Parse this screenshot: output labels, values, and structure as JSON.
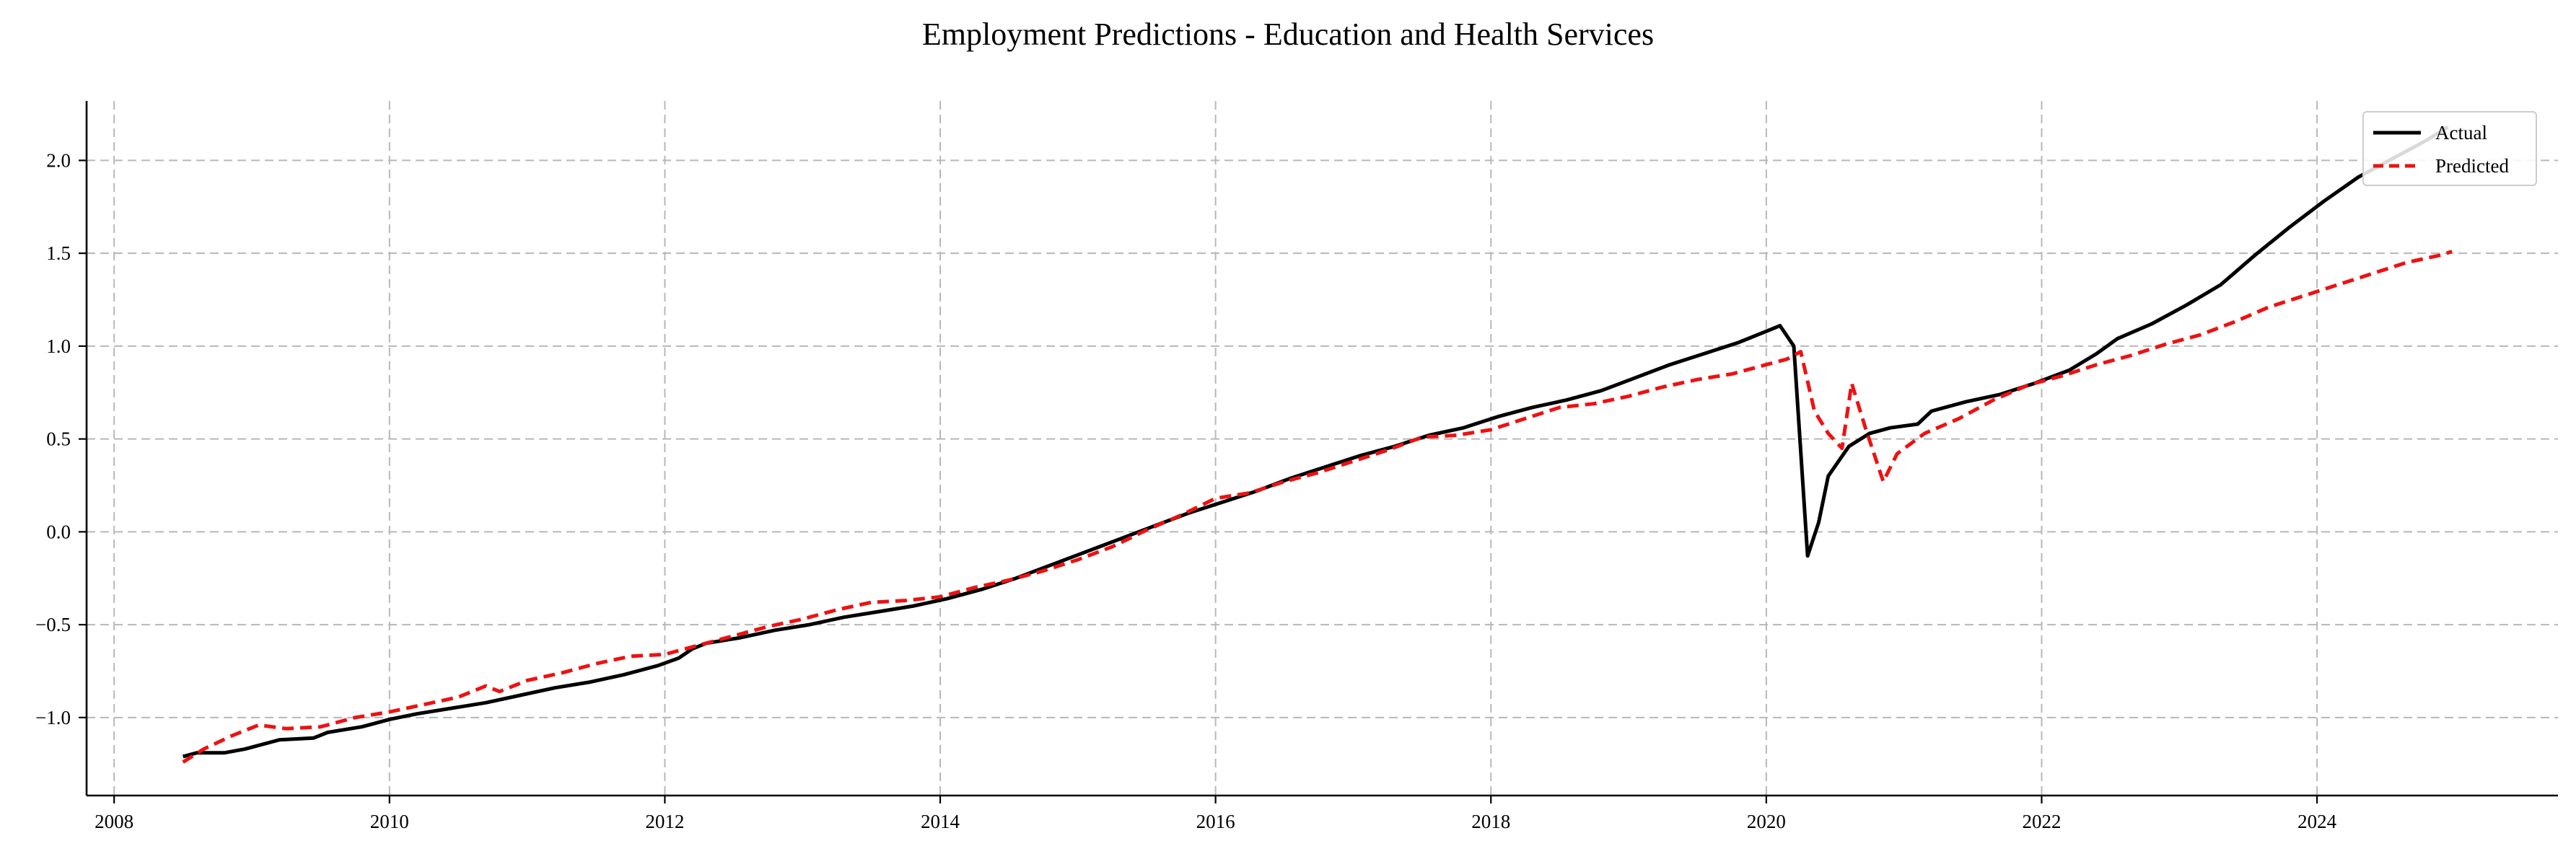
{
  "chart_data": {
    "type": "line",
    "title": "Employment Predictions - Education and Health Services",
    "xlabel": "",
    "ylabel": "",
    "xlim": [
      2007.8,
      2025.75
    ],
    "ylim": [
      -1.42,
      2.32
    ],
    "x_ticks": [
      2008,
      2010,
      2012,
      2014,
      2016,
      2018,
      2020,
      2022,
      2024
    ],
    "x_tick_labels": [
      "2008",
      "2010",
      "2012",
      "2014",
      "2016",
      "2018",
      "2020",
      "2022",
      "2024"
    ],
    "y_ticks": [
      -1.0,
      -0.5,
      0.0,
      0.5,
      1.0,
      1.5,
      2.0
    ],
    "y_tick_labels": [
      "−1.0",
      "−0.5",
      "0.0",
      "0.5",
      "1.0",
      "1.5",
      "2.0"
    ],
    "grid": true,
    "legend_position": "top-right",
    "series": [
      {
        "name": "Actual",
        "color": "#000000",
        "style": "solid",
        "points": [
          [
            2008.5,
            -1.21
          ],
          [
            2008.6,
            -1.19
          ],
          [
            2008.8,
            -1.19
          ],
          [
            2008.95,
            -1.17
          ],
          [
            2009.2,
            -1.12
          ],
          [
            2009.45,
            -1.11
          ],
          [
            2009.55,
            -1.08
          ],
          [
            2009.8,
            -1.05
          ],
          [
            2010.0,
            -1.01
          ],
          [
            2010.2,
            -0.98
          ],
          [
            2010.45,
            -0.95
          ],
          [
            2010.7,
            -0.92
          ],
          [
            2010.95,
            -0.88
          ],
          [
            2011.2,
            -0.84
          ],
          [
            2011.45,
            -0.81
          ],
          [
            2011.7,
            -0.77
          ],
          [
            2011.95,
            -0.72
          ],
          [
            2012.1,
            -0.68
          ],
          [
            2012.2,
            -0.63
          ],
          [
            2012.3,
            -0.6
          ],
          [
            2012.55,
            -0.57
          ],
          [
            2012.8,
            -0.53
          ],
          [
            2013.05,
            -0.5
          ],
          [
            2013.3,
            -0.46
          ],
          [
            2013.55,
            -0.43
          ],
          [
            2013.8,
            -0.4
          ],
          [
            2014.05,
            -0.36
          ],
          [
            2014.3,
            -0.31
          ],
          [
            2014.55,
            -0.25
          ],
          [
            2014.8,
            -0.18
          ],
          [
            2015.05,
            -0.11
          ],
          [
            2015.3,
            -0.04
          ],
          [
            2015.55,
            0.03
          ],
          [
            2015.8,
            0.1
          ],
          [
            2016.05,
            0.16
          ],
          [
            2016.3,
            0.22
          ],
          [
            2016.55,
            0.29
          ],
          [
            2016.8,
            0.35
          ],
          [
            2017.05,
            0.41
          ],
          [
            2017.3,
            0.46
          ],
          [
            2017.55,
            0.52
          ],
          [
            2017.8,
            0.56
          ],
          [
            2018.05,
            0.62
          ],
          [
            2018.3,
            0.67
          ],
          [
            2018.55,
            0.71
          ],
          [
            2018.8,
            0.76
          ],
          [
            2019.05,
            0.83
          ],
          [
            2019.3,
            0.9
          ],
          [
            2019.55,
            0.96
          ],
          [
            2019.8,
            1.02
          ],
          [
            2020.0,
            1.08
          ],
          [
            2020.1,
            1.11
          ],
          [
            2020.2,
            1.0
          ],
          [
            2020.3,
            -0.13
          ],
          [
            2020.38,
            0.05
          ],
          [
            2020.45,
            0.3
          ],
          [
            2020.6,
            0.46
          ],
          [
            2020.75,
            0.53
          ],
          [
            2020.9,
            0.56
          ],
          [
            2021.1,
            0.58
          ],
          [
            2021.2,
            0.65
          ],
          [
            2021.45,
            0.7
          ],
          [
            2021.7,
            0.74
          ],
          [
            2021.95,
            0.8
          ],
          [
            2022.2,
            0.87
          ],
          [
            2022.4,
            0.96
          ],
          [
            2022.55,
            1.04
          ],
          [
            2022.8,
            1.12
          ],
          [
            2023.05,
            1.22
          ],
          [
            2023.3,
            1.33
          ],
          [
            2023.55,
            1.49
          ],
          [
            2023.8,
            1.64
          ],
          [
            2024.05,
            1.78
          ],
          [
            2024.3,
            1.91
          ],
          [
            2024.55,
            2.01
          ],
          [
            2024.8,
            2.11
          ],
          [
            2024.95,
            2.18
          ]
        ]
      },
      {
        "name": "Predicted",
        "color": "#ee1111",
        "style": "dashed",
        "points": [
          [
            2008.5,
            -1.24
          ],
          [
            2008.65,
            -1.17
          ],
          [
            2008.85,
            -1.1
          ],
          [
            2009.05,
            -1.04
          ],
          [
            2009.25,
            -1.06
          ],
          [
            2009.5,
            -1.05
          ],
          [
            2009.75,
            -1.0
          ],
          [
            2010.0,
            -0.97
          ],
          [
            2010.25,
            -0.93
          ],
          [
            2010.5,
            -0.89
          ],
          [
            2010.7,
            -0.83
          ],
          [
            2010.8,
            -0.86
          ],
          [
            2011.0,
            -0.8
          ],
          [
            2011.25,
            -0.76
          ],
          [
            2011.5,
            -0.71
          ],
          [
            2011.75,
            -0.67
          ],
          [
            2012.0,
            -0.66
          ],
          [
            2012.25,
            -0.61
          ],
          [
            2012.5,
            -0.56
          ],
          [
            2012.75,
            -0.51
          ],
          [
            2013.0,
            -0.47
          ],
          [
            2013.25,
            -0.42
          ],
          [
            2013.5,
            -0.38
          ],
          [
            2013.75,
            -0.37
          ],
          [
            2014.0,
            -0.35
          ],
          [
            2014.25,
            -0.3
          ],
          [
            2014.5,
            -0.26
          ],
          [
            2014.75,
            -0.21
          ],
          [
            2015.0,
            -0.15
          ],
          [
            2015.25,
            -0.08
          ],
          [
            2015.5,
            0.01
          ],
          [
            2015.75,
            0.09
          ],
          [
            2016.0,
            0.18
          ],
          [
            2016.25,
            0.21
          ],
          [
            2016.5,
            0.27
          ],
          [
            2016.75,
            0.32
          ],
          [
            2017.0,
            0.38
          ],
          [
            2017.25,
            0.44
          ],
          [
            2017.5,
            0.51
          ],
          [
            2017.75,
            0.52
          ],
          [
            2018.0,
            0.55
          ],
          [
            2018.25,
            0.61
          ],
          [
            2018.5,
            0.67
          ],
          [
            2018.75,
            0.69
          ],
          [
            2019.0,
            0.73
          ],
          [
            2019.25,
            0.78
          ],
          [
            2019.5,
            0.82
          ],
          [
            2019.75,
            0.85
          ],
          [
            2020.0,
            0.9
          ],
          [
            2020.15,
            0.93
          ],
          [
            2020.25,
            0.97
          ],
          [
            2020.35,
            0.65
          ],
          [
            2020.45,
            0.53
          ],
          [
            2020.55,
            0.45
          ],
          [
            2020.62,
            0.8
          ],
          [
            2020.72,
            0.56
          ],
          [
            2020.85,
            0.27
          ],
          [
            2020.95,
            0.42
          ],
          [
            2021.15,
            0.53
          ],
          [
            2021.4,
            0.61
          ],
          [
            2021.65,
            0.71
          ],
          [
            2021.9,
            0.79
          ],
          [
            2022.15,
            0.84
          ],
          [
            2022.4,
            0.9
          ],
          [
            2022.65,
            0.95
          ],
          [
            2022.9,
            1.01
          ],
          [
            2023.15,
            1.06
          ],
          [
            2023.4,
            1.13
          ],
          [
            2023.65,
            1.21
          ],
          [
            2023.9,
            1.27
          ],
          [
            2024.15,
            1.33
          ],
          [
            2024.4,
            1.39
          ],
          [
            2024.65,
            1.45
          ],
          [
            2024.9,
            1.49
          ],
          [
            2024.98,
            1.51
          ]
        ]
      }
    ]
  }
}
